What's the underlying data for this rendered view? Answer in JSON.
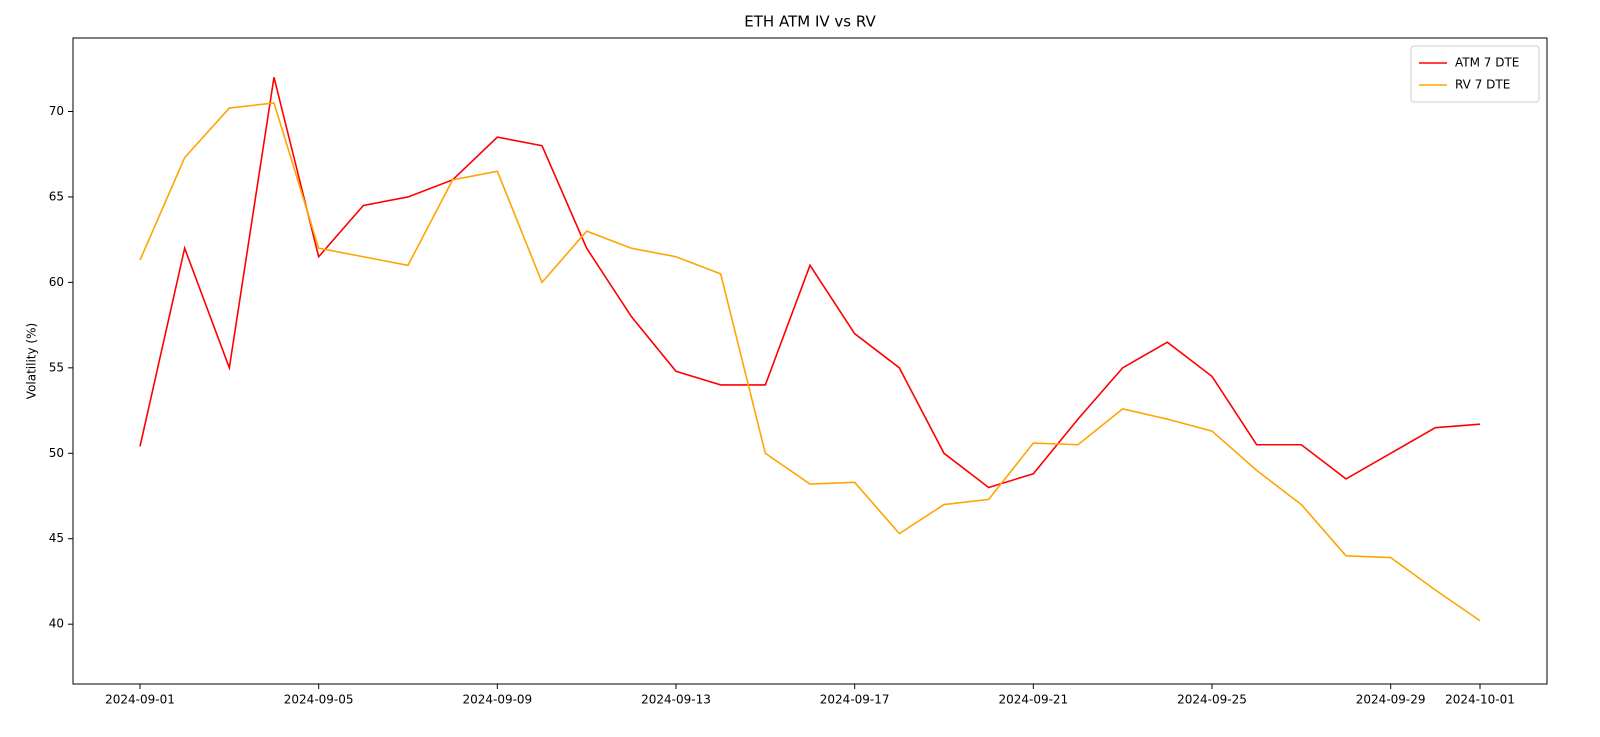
{
  "chart_data": {
    "type": "line",
    "title": "ETH ATM IV vs RV",
    "y_label": "Volatility (%)",
    "x": [
      "2024-09-01",
      "2024-09-02",
      "2024-09-03",
      "2024-09-04",
      "2024-09-05",
      "2024-09-06",
      "2024-09-07",
      "2024-09-08",
      "2024-09-09",
      "2024-09-10",
      "2024-09-11",
      "2024-09-12",
      "2024-09-13",
      "2024-09-14",
      "2024-09-15",
      "2024-09-16",
      "2024-09-17",
      "2024-09-18",
      "2024-09-19",
      "2024-09-20",
      "2024-09-21",
      "2024-09-22",
      "2024-09-23",
      "2024-09-24",
      "2024-09-25",
      "2024-09-26",
      "2024-09-27",
      "2024-09-28",
      "2024-09-29",
      "2024-09-30",
      "2024-10-01"
    ],
    "series": [
      {
        "name": "ATM 7 DTE",
        "color": "#ff0000",
        "values": [
          50.4,
          62,
          55,
          72,
          61.5,
          64.5,
          65,
          66,
          68.5,
          68,
          62,
          58,
          54.8,
          54,
          54,
          61,
          57,
          55,
          50,
          48,
          48.8,
          52,
          55,
          56.5,
          54.5,
          50.5,
          50.5,
          48.5,
          50,
          51.5,
          51.7
        ]
      },
      {
        "name": "RV 7 DTE",
        "color": "#ffa500",
        "values": [
          61.3,
          67.3,
          70.2,
          70.5,
          62,
          61.5,
          61,
          66,
          66.5,
          60,
          63,
          62,
          61.5,
          60.5,
          50,
          48.2,
          48.3,
          45.3,
          47,
          47.3,
          50.6,
          50.5,
          52.6,
          52,
          51.3,
          49,
          47,
          44,
          43.9,
          42,
          40.2
        ]
      }
    ],
    "xticks": [
      "2024-09-01",
      "2024-09-05",
      "2024-09-09",
      "2024-09-13",
      "2024-09-17",
      "2024-09-21",
      "2024-09-25",
      "2024-09-29",
      "2024-10-01"
    ],
    "ylim": [
      36.5,
      74.3
    ],
    "yticks": [
      40,
      45,
      50,
      55,
      60,
      65,
      70
    ],
    "legend": "upper right",
    "grid": false
  }
}
